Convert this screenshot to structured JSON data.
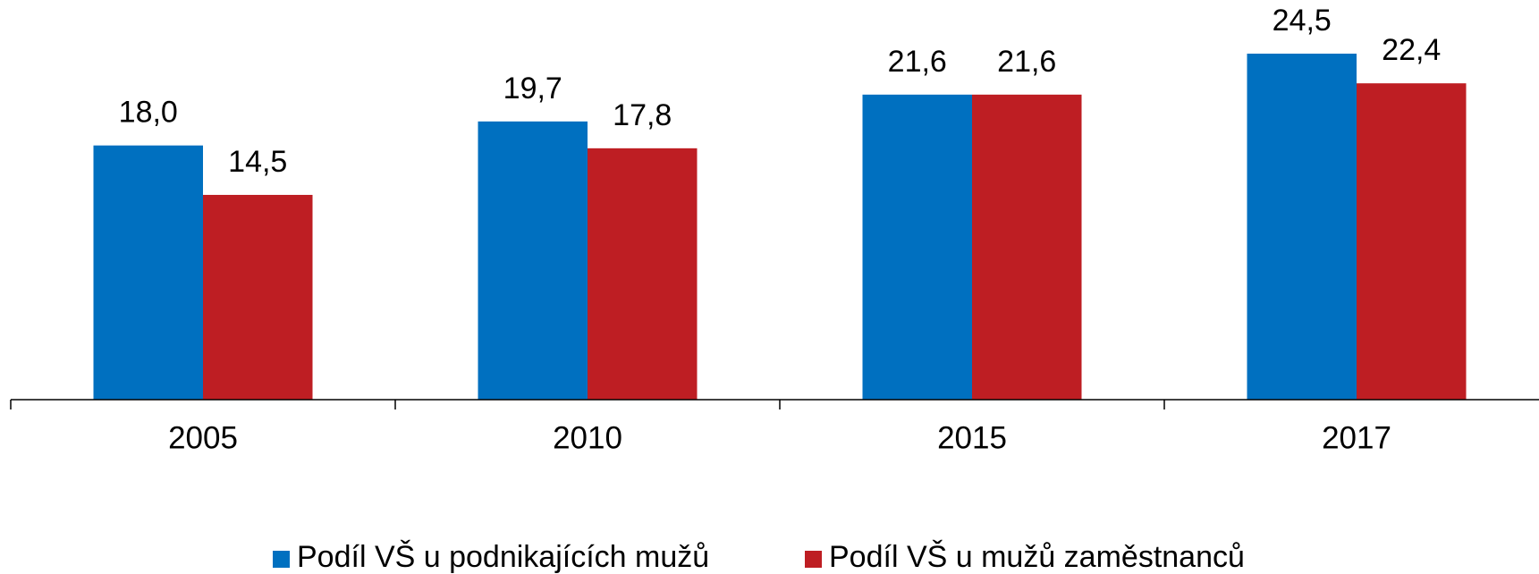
{
  "chart_data": {
    "type": "bar",
    "categories": [
      "2005",
      "2010",
      "2015",
      "2017"
    ],
    "series": [
      {
        "name": "Podíl VŠ u podnikajících mužů",
        "color": "#0070c0",
        "values": [
          18.0,
          19.7,
          21.6,
          24.5
        ],
        "value_labels": [
          "18,0",
          "19,7",
          "21,6",
          "24,5"
        ]
      },
      {
        "name": "Podíl VŠ u mužů zaměstnanců",
        "color": "#be1e23",
        "values": [
          14.5,
          17.8,
          21.6,
          22.4
        ],
        "value_labels": [
          "14,5",
          "17,8",
          "21,6",
          "22,4"
        ]
      }
    ],
    "ylim": [
      0,
      28.3
    ],
    "legend": "bottom"
  }
}
